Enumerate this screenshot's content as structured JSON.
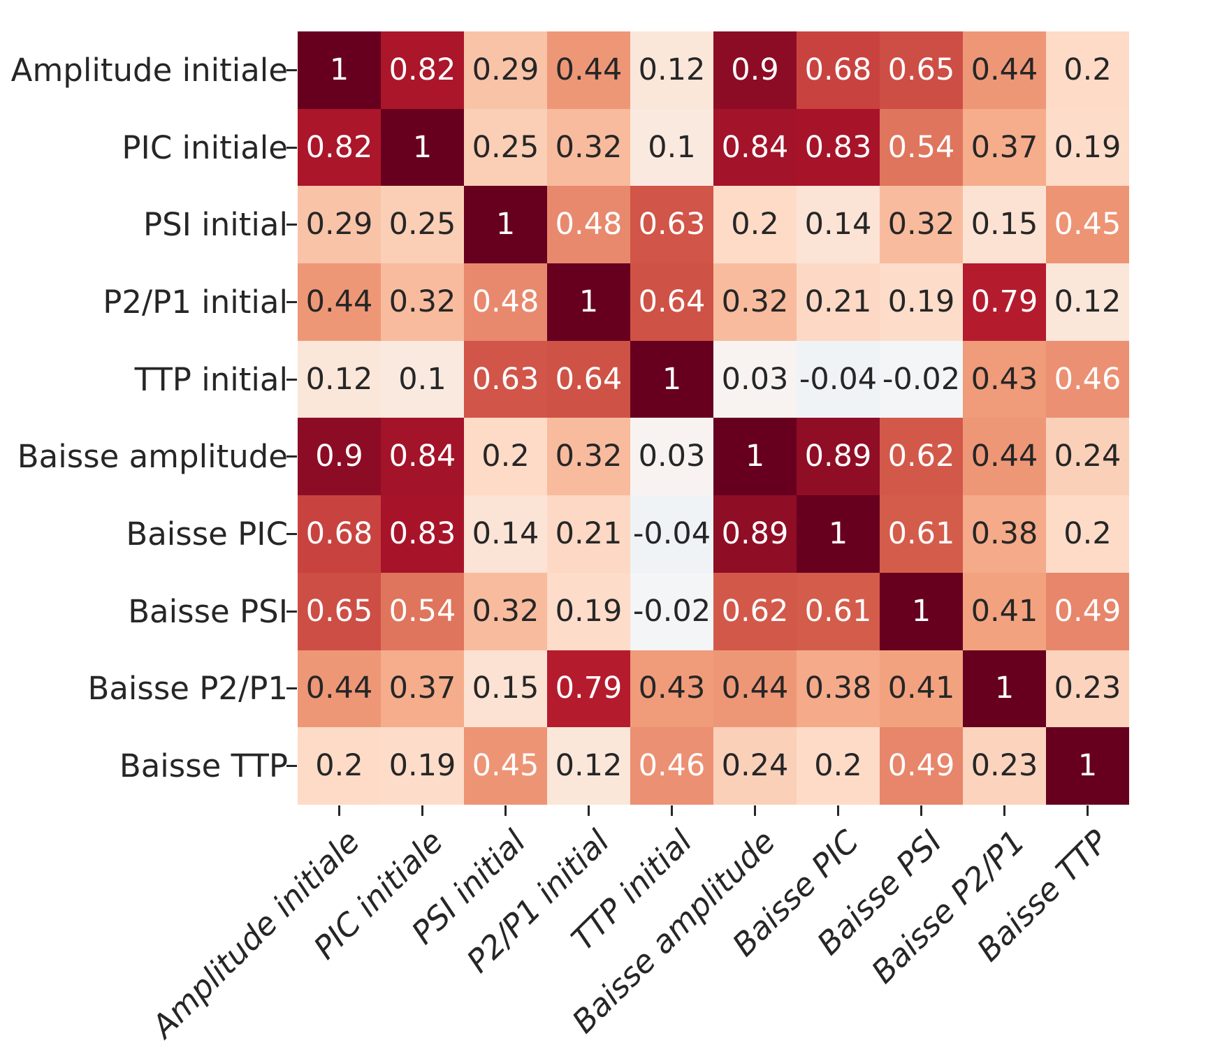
{
  "chart_data": {
    "type": "heatmap",
    "title": "",
    "labels": [
      "Amplitude initiale",
      "PIC initiale",
      "PSI initial",
      "P2/P1 initial",
      "TTP initial",
      "Baisse amplitude",
      "Baisse PIC",
      "Baisse PSI",
      "Baisse P2/P1",
      "Baisse TTP"
    ],
    "matrix": [
      [
        1,
        0.82,
        0.29,
        0.44,
        0.12,
        0.9,
        0.68,
        0.65,
        0.44,
        0.2
      ],
      [
        0.82,
        1,
        0.25,
        0.32,
        0.1,
        0.84,
        0.83,
        0.54,
        0.37,
        0.19
      ],
      [
        0.29,
        0.25,
        1,
        0.48,
        0.63,
        0.2,
        0.14,
        0.32,
        0.15,
        0.45
      ],
      [
        0.44,
        0.32,
        0.48,
        1,
        0.64,
        0.32,
        0.21,
        0.19,
        0.79,
        0.12
      ],
      [
        0.12,
        0.1,
        0.63,
        0.64,
        1,
        0.03,
        -0.04,
        -0.02,
        0.43,
        0.46
      ],
      [
        0.9,
        0.84,
        0.2,
        0.32,
        0.03,
        1,
        0.89,
        0.62,
        0.44,
        0.24
      ],
      [
        0.68,
        0.83,
        0.14,
        0.21,
        -0.04,
        0.89,
        1,
        0.61,
        0.38,
        0.2
      ],
      [
        0.65,
        0.54,
        0.32,
        0.19,
        -0.02,
        0.62,
        0.61,
        1,
        0.41,
        0.49
      ],
      [
        0.44,
        0.37,
        0.15,
        0.79,
        0.43,
        0.44,
        0.38,
        0.41,
        1,
        0.23
      ],
      [
        0.2,
        0.19,
        0.45,
        0.12,
        0.46,
        0.24,
        0.2,
        0.49,
        0.23,
        1
      ]
    ],
    "colormap": "RdBu_r",
    "colormap_stops": [
      "#053061",
      "#2166ac",
      "#4393c3",
      "#92c5de",
      "#d1e5f0",
      "#f7f7f7",
      "#fddbc7",
      "#f4a582",
      "#d6604d",
      "#b2182b",
      "#67001f"
    ],
    "vmin": -1,
    "vmax": 1,
    "annot_dark_text_color": "#262626",
    "annot_light_text_color": "#ffffff",
    "tick_color": "#262626",
    "background_color": "#ffffff",
    "legend": "none",
    "grid": false
  }
}
